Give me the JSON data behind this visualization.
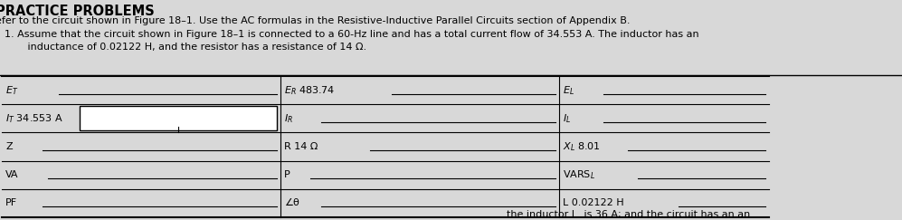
{
  "bg_color": "#d8d8d8",
  "title": "PRACTICE PROBLEMS",
  "subtitle": "efer to the circuit shown in Figure 18–1. Use the AC formulas in the Resistive-Inductive Parallel Circuits section of Appendix B.",
  "problem_line1": "1. Assume that the circuit shown in Figure 18–1 is connected to a 60-Hz line and has a total current flow of 34.553 A. The inductor has an",
  "problem_line2": "   inductance of 0.02122 H, and the resistor has a resistance of 14 Ω.",
  "bottom_text": "the inductor I   is 36 A; and the circuit has an an",
  "col1_labels": [
    "$E_T$",
    "$I_T$ 34.553 A",
    "Z",
    "VA",
    "PF"
  ],
  "col2_labels": [
    "$E_R$ 483.74",
    "$I_R$",
    "R 14 Ω",
    "P",
    "∠θ"
  ],
  "col3_labels": [
    "$E_L$",
    "$I_L$",
    "$X_L$ 8.01",
    "VARS$_L$",
    "L 0.02122 H"
  ],
  "lc": "#000000",
  "fs_title": 10.5,
  "fs_body": 8.0,
  "fs_table": 8.0
}
